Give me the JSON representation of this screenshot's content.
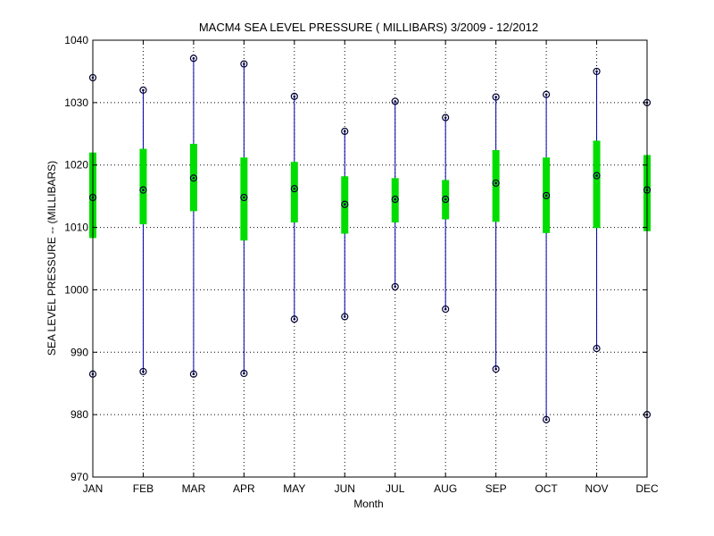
{
  "chart_data": {
    "type": "boxplot",
    "title": "MACM4  SEA LEVEL PRESSURE ( MILLIBARS) 3/2009 - 12/2012",
    "xlabel": "Month",
    "ylabel": "SEA LEVEL PRESSURE -- (MILLIBARS)",
    "ylim": [
      970,
      1040
    ],
    "yticks": [
      970,
      980,
      990,
      1000,
      1010,
      1020,
      1030,
      1040
    ],
    "grid": true,
    "categories": [
      "JAN",
      "FEB",
      "MAR",
      "APR",
      "MAY",
      "JUN",
      "JUL",
      "AUG",
      "SEP",
      "OCT",
      "NOV",
      "DEC"
    ],
    "min": [
      986.5,
      986.9,
      986.5,
      986.6,
      995.3,
      995.7,
      1000.5,
      996.9,
      987.3,
      979.2,
      990.6,
      980.0
    ],
    "q1": [
      1008.3,
      1010.5,
      1012.6,
      1007.9,
      1010.8,
      1009.0,
      1010.8,
      1011.3,
      1010.9,
      1009.1,
      1009.9,
      1009.4
    ],
    "median": [
      1014.8,
      1016.0,
      1017.9,
      1014.8,
      1016.2,
      1013.7,
      1014.5,
      1014.5,
      1017.1,
      1015.1,
      1018.3,
      1016.0
    ],
    "q3": [
      1022.0,
      1022.6,
      1023.4,
      1021.2,
      1020.5,
      1018.2,
      1017.9,
      1017.6,
      1022.4,
      1021.2,
      1023.9,
      1021.6
    ],
    "max": [
      1034.0,
      1032.0,
      1037.1,
      1036.2,
      1031.0,
      1025.4,
      1030.2,
      1027.6,
      1030.9,
      1031.3,
      1035.0,
      1030.0
    ],
    "colors": {
      "whisker": "#0000aa",
      "box": "#00dd00",
      "marker": "#000033",
      "grid": "#000000"
    }
  }
}
